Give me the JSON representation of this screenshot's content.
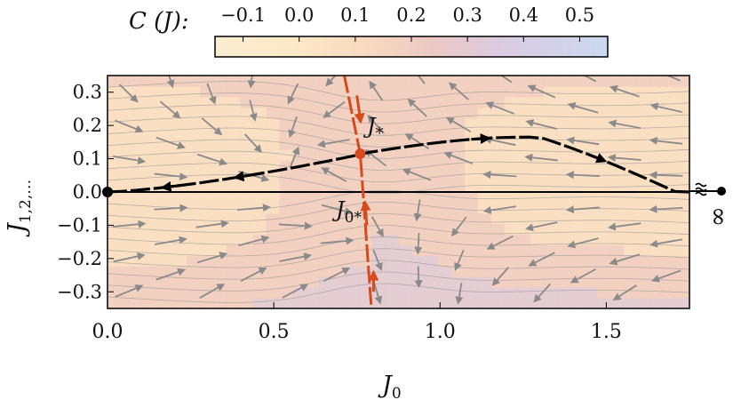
{
  "chart_data": {
    "type": "heatmap",
    "colorbar": {
      "label": "C (J):",
      "ticks": [
        "−0.1",
        "0.0",
        "0.1",
        "0.2",
        "0.3",
        "0.4",
        "0.5"
      ],
      "tick_values": [
        -0.1,
        0.0,
        0.1,
        0.2,
        0.3,
        0.4,
        0.5
      ],
      "range": [
        -0.15,
        0.55
      ],
      "colors": [
        "#fbedd0",
        "#fde8c6",
        "#f9ddc2",
        "#f1cdc0",
        "#dfc9d6",
        "#d3cfe6",
        "#cdd9ef"
      ]
    },
    "xlabel": "J0",
    "ylabel": "J1,2,…",
    "xlim": [
      0.0,
      1.75
    ],
    "ylim": [
      -0.35,
      0.35
    ],
    "x_ticks": [
      "0.0",
      "0.5",
      "1.0",
      "1.5"
    ],
    "x_tick_values": [
      0.0,
      0.5,
      1.0,
      1.5
    ],
    "y_ticks": [
      "0.3",
      "0.2",
      "0.1",
      "0.0",
      "−0.1",
      "−0.2",
      "−0.3"
    ],
    "y_tick_values": [
      0.3,
      0.2,
      0.1,
      0.0,
      -0.1,
      -0.2,
      -0.3
    ],
    "infinity_marker": "∞",
    "fixed_points": [
      {
        "label": "J*",
        "x": 0.76,
        "y": 0.115,
        "color": "#d64a1e"
      },
      {
        "label": "",
        "x": 0.0,
        "y": 0.0,
        "color": "#000000"
      }
    ],
    "separatrix_label": "J0*",
    "flow_arrows_color": "#8a8a8a",
    "main_trajectory_color": "#000000",
    "critical_line_color": "#d64a1e"
  }
}
